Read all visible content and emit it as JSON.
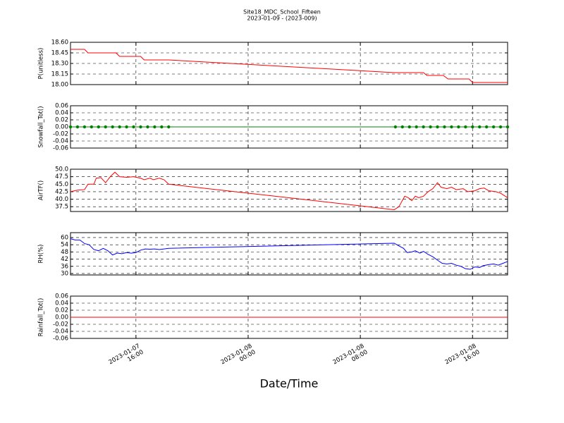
{
  "chart_data": [
    {
      "type": "line",
      "title": "Site18_MDC_School_Fifteen",
      "subtitle": "2023-01-09 - (2023-009)",
      "ylabel": "P(unitless)",
      "color": "#ff0000",
      "grid": true,
      "x": [
        "2023-01-07 11:20",
        "2023-01-07 12:20",
        "2023-01-07 12:35",
        "2023-01-07 14:35",
        "2023-01-07 14:50",
        "2023-01-07 16:20",
        "2023-01-07 16:35",
        "2023-01-07 18:20",
        "2023-01-08 10:25",
        "2023-01-08 12:30",
        "2023-01-08 12:45",
        "2023-01-08 13:55",
        "2023-01-08 14:15",
        "2023-01-08 15:45",
        "2023-01-08 16:00",
        "2023-01-08 18:30"
      ],
      "values": [
        18.5,
        18.5,
        18.45,
        18.45,
        18.4,
        18.4,
        18.35,
        18.35,
        18.17,
        18.17,
        18.13,
        18.13,
        18.08,
        18.08,
        18.03,
        18.03
      ],
      "xlim": [
        "2023-01-07 11:20",
        "2023-01-08 18:30"
      ],
      "xticks": [
        "2023-01-07 16:00",
        "2023-01-08 00:00",
        "2023-01-08 08:00",
        "2023-01-08 16:00"
      ],
      "ylim": [
        18.0,
        18.6
      ],
      "yticks": [
        {
          "value": 18.0,
          "label": "18.00"
        },
        {
          "value": 18.15,
          "label": "18.15"
        },
        {
          "value": 18.3,
          "label": "18.30"
        },
        {
          "value": 18.45,
          "label": "18.45"
        },
        {
          "value": 18.6,
          "label": "18.60"
        }
      ]
    },
    {
      "type": "line",
      "ylabel": "Snowfall_Tot()",
      "color": "#008000",
      "marker": true,
      "grid": true,
      "x": [
        "2023-01-07 11:20",
        "2023-01-07 11:50",
        "2023-01-07 12:20",
        "2023-01-07 12:50",
        "2023-01-07 13:20",
        "2023-01-07 13:50",
        "2023-01-07 14:20",
        "2023-01-07 14:50",
        "2023-01-07 15:20",
        "2023-01-07 15:50",
        "2023-01-07 16:20",
        "2023-01-07 16:50",
        "2023-01-07 17:20",
        "2023-01-07 17:50",
        "2023-01-07 18:20",
        "2023-01-08 10:30",
        "2023-01-08 11:00",
        "2023-01-08 11:30",
        "2023-01-08 12:00",
        "2023-01-08 12:30",
        "2023-01-08 13:00",
        "2023-01-08 13:30",
        "2023-01-08 14:00",
        "2023-01-08 14:30",
        "2023-01-08 15:00",
        "2023-01-08 15:30",
        "2023-01-08 16:00",
        "2023-01-08 16:30",
        "2023-01-08 17:00",
        "2023-01-08 17:30",
        "2023-01-08 18:00",
        "2023-01-08 18:30"
      ],
      "values": [
        0,
        0,
        0,
        0,
        0,
        0,
        0,
        0,
        0,
        0,
        0,
        0,
        0,
        0,
        0,
        0,
        0,
        0,
        0,
        0,
        0,
        0,
        0,
        0,
        0,
        0,
        0,
        0,
        0,
        0,
        0,
        0
      ],
      "xlim": [
        "2023-01-07 11:20",
        "2023-01-08 18:30"
      ],
      "xticks": [
        "2023-01-07 16:00",
        "2023-01-08 00:00",
        "2023-01-08 08:00",
        "2023-01-08 16:00"
      ],
      "ylim": [
        -0.06,
        0.06
      ],
      "yticks": [
        -0.06,
        -0.04,
        -0.02,
        {
          "value": 0,
          "label": "0.00"
        },
        0.02,
        0.04,
        0.06
      ]
    },
    {
      "type": "line",
      "ylabel": "AirTF()",
      "color": "#ff0000",
      "grid": true,
      "x": [
        "2023-01-07 11:20",
        "2023-01-07 11:50",
        "2023-01-07 12:20",
        "2023-01-07 12:35",
        "2023-01-07 13:00",
        "2023-01-07 13:10",
        "2023-01-07 13:30",
        "2023-01-07 13:50",
        "2023-01-07 14:10",
        "2023-01-07 14:30",
        "2023-01-07 14:50",
        "2023-01-07 15:20",
        "2023-01-07 15:50",
        "2023-01-07 16:20",
        "2023-01-07 16:35",
        "2023-01-07 17:00",
        "2023-01-07 17:15",
        "2023-01-07 17:40",
        "2023-01-07 18:00",
        "2023-01-07 18:20",
        "2023-01-08 10:25",
        "2023-01-08 10:45",
        "2023-01-08 11:10",
        "2023-01-08 11:25",
        "2023-01-08 11:40",
        "2023-01-08 11:55",
        "2023-01-08 12:10",
        "2023-01-08 12:30",
        "2023-01-08 12:50",
        "2023-01-08 13:10",
        "2023-01-08 13:30",
        "2023-01-08 13:45",
        "2023-01-08 14:10",
        "2023-01-08 14:30",
        "2023-01-08 14:50",
        "2023-01-08 15:20",
        "2023-01-08 15:40",
        "2023-01-08 16:10",
        "2023-01-08 16:30",
        "2023-01-08 16:50",
        "2023-01-08 17:10",
        "2023-01-08 17:40",
        "2023-01-08 18:00",
        "2023-01-08 18:30"
      ],
      "values": [
        42.5,
        43,
        43.2,
        45,
        45,
        47,
        47.2,
        45.5,
        47.5,
        49,
        47.5,
        47.3,
        47.5,
        47,
        46.5,
        47,
        46.5,
        47,
        46.5,
        45,
        36.5,
        37.5,
        41,
        40.5,
        39.5,
        41,
        40.5,
        41,
        42.5,
        43.5,
        45.5,
        44,
        43.5,
        44,
        43.2,
        43.5,
        42.5,
        42.8,
        43.5,
        43.7,
        42.8,
        42.5,
        42,
        40.5
      ],
      "xlim": [
        "2023-01-07 11:20",
        "2023-01-08 18:30"
      ],
      "xticks": [
        "2023-01-07 16:00",
        "2023-01-08 00:00",
        "2023-01-08 08:00",
        "2023-01-08 16:00"
      ],
      "ylim": [
        35.9,
        50
      ],
      "yticks": [
        37.5,
        {
          "value": 40,
          "label": "40.0"
        },
        42.5,
        {
          "value": 45,
          "label": "45.0"
        },
        47.5,
        {
          "value": 50,
          "label": "50.0"
        }
      ]
    },
    {
      "type": "line",
      "ylabel": "RH(%)",
      "color": "#0000ff",
      "grid": true,
      "x": [
        "2023-01-07 11:20",
        "2023-01-07 11:40",
        "2023-01-07 12:00",
        "2023-01-07 12:20",
        "2023-01-07 12:40",
        "2023-01-07 13:00",
        "2023-01-07 13:20",
        "2023-01-07 13:40",
        "2023-01-07 14:00",
        "2023-01-07 14:20",
        "2023-01-07 14:40",
        "2023-01-07 15:00",
        "2023-01-07 15:20",
        "2023-01-07 15:40",
        "2023-01-07 16:00",
        "2023-01-07 16:20",
        "2023-01-07 16:40",
        "2023-01-07 17:00",
        "2023-01-07 17:20",
        "2023-01-07 17:40",
        "2023-01-07 18:00",
        "2023-01-07 18:20",
        "2023-01-08 10:25",
        "2023-01-08 10:45",
        "2023-01-08 11:05",
        "2023-01-08 11:20",
        "2023-01-08 11:40",
        "2023-01-08 11:55",
        "2023-01-08 12:15",
        "2023-01-08 12:30",
        "2023-01-08 12:50",
        "2023-01-08 13:10",
        "2023-01-08 13:35",
        "2023-01-08 13:50",
        "2023-01-08 14:10",
        "2023-01-08 14:30",
        "2023-01-08 14:50",
        "2023-01-08 15:10",
        "2023-01-08 15:30",
        "2023-01-08 15:50",
        "2023-01-08 16:10",
        "2023-01-08 16:30",
        "2023-01-08 16:45",
        "2023-01-08 17:10",
        "2023-01-08 17:30",
        "2023-01-08 17:50",
        "2023-01-08 18:10",
        "2023-01-08 18:30"
      ],
      "values": [
        59,
        58,
        58,
        55,
        54,
        50,
        49,
        51,
        49,
        45.5,
        47,
        46.5,
        47.5,
        47,
        47.5,
        49.5,
        50.5,
        50.3,
        50.5,
        50,
        50.5,
        51,
        55.3,
        53,
        51,
        47.5,
        48,
        49,
        47,
        48.5,
        46,
        44,
        40.5,
        38.5,
        38,
        38.5,
        37,
        36,
        34,
        33.5,
        35.5,
        35,
        36.5,
        37.5,
        38,
        37,
        38.5,
        40
      ],
      "xlim": [
        "2023-01-07 11:20",
        "2023-01-08 18:30"
      ],
      "xticks": [
        "2023-01-07 16:00",
        "2023-01-08 00:00",
        "2023-01-08 08:00",
        "2023-01-08 16:00"
      ],
      "ylim": [
        28.8,
        64.1
      ],
      "yticks": [
        30,
        36,
        42,
        48,
        54,
        60
      ]
    },
    {
      "type": "line",
      "ylabel": "Rainfall_Tot()",
      "xlabel": "Date/Time",
      "color": "#ff0000",
      "grid": true,
      "x": [
        "2023-01-07 11:20",
        "2023-01-08 18:30"
      ],
      "values": [
        0,
        0
      ],
      "xlim": [
        "2023-01-07 11:20",
        "2023-01-08 18:30"
      ],
      "xticks": [
        {
          "value": "2023-01-07 16:00",
          "label": "2023-01-07\n16:00"
        },
        {
          "value": "2023-01-08 00:00",
          "label": "2023-01-08\n00:00"
        },
        {
          "value": "2023-01-08 08:00",
          "label": "2023-01-08\n08:00"
        },
        {
          "value": "2023-01-08 16:00",
          "label": "2023-01-08\n16:00"
        }
      ],
      "ylim": [
        -0.06,
        0.06
      ],
      "yticks": [
        -0.06,
        -0.04,
        -0.02,
        {
          "value": 0,
          "label": "0.00"
        },
        0.02,
        0.04,
        0.06
      ]
    }
  ]
}
